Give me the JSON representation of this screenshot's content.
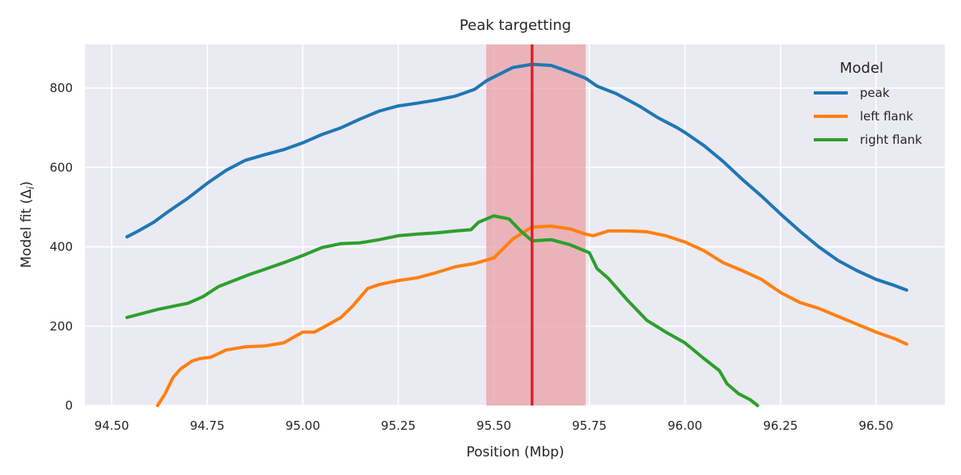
{
  "chart_data": {
    "type": "line",
    "title": "Peak targetting",
    "xlabel": "Position (Mbp)",
    "ylabel_main": "Model fit (Δ",
    "ylabel_sub": "i",
    "ylabel_end": ")",
    "xlim": [
      94.43,
      96.68
    ],
    "ylim": [
      0,
      910
    ],
    "xticks": [
      94.5,
      94.75,
      95.0,
      95.25,
      95.5,
      95.75,
      96.0,
      96.25,
      96.5
    ],
    "xtick_labels": [
      "94.50",
      "94.75",
      "95.00",
      "95.25",
      "95.50",
      "95.75",
      "96.00",
      "96.25",
      "96.50"
    ],
    "yticks": [
      0,
      200,
      400,
      600,
      800
    ],
    "ytick_labels": [
      "0",
      "200",
      "400",
      "600",
      "800"
    ],
    "grid": true,
    "legend": {
      "title": "Model",
      "placement": "upper right"
    },
    "highlight_band": {
      "x0": 95.48,
      "x1": 95.74,
      "color": "#e8a0a6"
    },
    "vline": {
      "x": 95.6,
      "color": "#d62728"
    },
    "series": [
      {
        "name": "peak",
        "color": "#1f77b4",
        "points": [
          [
            94.54,
            425
          ],
          [
            94.57,
            440
          ],
          [
            94.61,
            462
          ],
          [
            94.65,
            490
          ],
          [
            94.7,
            523
          ],
          [
            94.75,
            560
          ],
          [
            94.8,
            593
          ],
          [
            94.85,
            618
          ],
          [
            94.9,
            632
          ],
          [
            94.95,
            645
          ],
          [
            95.0,
            662
          ],
          [
            95.05,
            683
          ],
          [
            95.1,
            700
          ],
          [
            95.15,
            722
          ],
          [
            95.2,
            742
          ],
          [
            95.25,
            755
          ],
          [
            95.3,
            762
          ],
          [
            95.35,
            770
          ],
          [
            95.4,
            780
          ],
          [
            95.45,
            797
          ],
          [
            95.48,
            818
          ],
          [
            95.5,
            828
          ],
          [
            95.55,
            852
          ],
          [
            95.6,
            860
          ],
          [
            95.65,
            857
          ],
          [
            95.7,
            840
          ],
          [
            95.74,
            825
          ],
          [
            95.77,
            805
          ],
          [
            95.82,
            786
          ],
          [
            95.88,
            755
          ],
          [
            95.93,
            725
          ],
          [
            95.98,
            700
          ],
          [
            96.0,
            688
          ],
          [
            96.05,
            655
          ],
          [
            96.1,
            615
          ],
          [
            96.15,
            570
          ],
          [
            96.2,
            528
          ],
          [
            96.25,
            483
          ],
          [
            96.3,
            440
          ],
          [
            96.35,
            400
          ],
          [
            96.4,
            366
          ],
          [
            96.45,
            340
          ],
          [
            96.5,
            318
          ],
          [
            96.55,
            302
          ],
          [
            96.58,
            291
          ]
        ]
      },
      {
        "name": "left flank",
        "color": "#ff7f0e",
        "points": [
          [
            94.62,
            0
          ],
          [
            94.64,
            30
          ],
          [
            94.66,
            70
          ],
          [
            94.68,
            92
          ],
          [
            94.71,
            112
          ],
          [
            94.73,
            118
          ],
          [
            94.76,
            122
          ],
          [
            94.8,
            140
          ],
          [
            94.85,
            148
          ],
          [
            94.9,
            150
          ],
          [
            94.95,
            158
          ],
          [
            95.0,
            185
          ],
          [
            95.03,
            185
          ],
          [
            95.05,
            195
          ],
          [
            95.1,
            222
          ],
          [
            95.13,
            250
          ],
          [
            95.17,
            295
          ],
          [
            95.2,
            305
          ],
          [
            95.25,
            315
          ],
          [
            95.3,
            322
          ],
          [
            95.35,
            335
          ],
          [
            95.4,
            350
          ],
          [
            95.45,
            358
          ],
          [
            95.5,
            372
          ],
          [
            95.55,
            420
          ],
          [
            95.6,
            450
          ],
          [
            95.65,
            452
          ],
          [
            95.7,
            445
          ],
          [
            95.74,
            432
          ],
          [
            95.76,
            428
          ],
          [
            95.8,
            440
          ],
          [
            95.85,
            440
          ],
          [
            95.9,
            438
          ],
          [
            95.95,
            428
          ],
          [
            96.0,
            412
          ],
          [
            96.05,
            390
          ],
          [
            96.1,
            360
          ],
          [
            96.15,
            340
          ],
          [
            96.2,
            318
          ],
          [
            96.25,
            285
          ],
          [
            96.3,
            260
          ],
          [
            96.35,
            245
          ],
          [
            96.4,
            225
          ],
          [
            96.45,
            205
          ],
          [
            96.5,
            185
          ],
          [
            96.55,
            168
          ],
          [
            96.58,
            155
          ]
        ]
      },
      {
        "name": "right flank",
        "color": "#2ca02c",
        "points": [
          [
            94.54,
            222
          ],
          [
            94.58,
            232
          ],
          [
            94.62,
            242
          ],
          [
            94.66,
            250
          ],
          [
            94.7,
            258
          ],
          [
            94.74,
            275
          ],
          [
            94.78,
            300
          ],
          [
            94.82,
            315
          ],
          [
            94.86,
            330
          ],
          [
            94.9,
            343
          ],
          [
            94.95,
            360
          ],
          [
            95.0,
            378
          ],
          [
            95.05,
            398
          ],
          [
            95.1,
            408
          ],
          [
            95.15,
            410
          ],
          [
            95.2,
            418
          ],
          [
            95.25,
            428
          ],
          [
            95.3,
            432
          ],
          [
            95.35,
            435
          ],
          [
            95.4,
            440
          ],
          [
            95.44,
            443
          ],
          [
            95.46,
            462
          ],
          [
            95.5,
            478
          ],
          [
            95.54,
            470
          ],
          [
            95.57,
            440
          ],
          [
            95.6,
            415
          ],
          [
            95.65,
            418
          ],
          [
            95.7,
            405
          ],
          [
            95.75,
            385
          ],
          [
            95.77,
            345
          ],
          [
            95.8,
            320
          ],
          [
            95.85,
            265
          ],
          [
            95.9,
            215
          ],
          [
            95.95,
            185
          ],
          [
            96.0,
            158
          ],
          [
            96.05,
            118
          ],
          [
            96.09,
            88
          ],
          [
            96.11,
            55
          ],
          [
            96.14,
            30
          ],
          [
            96.17,
            15
          ],
          [
            96.19,
            0
          ]
        ]
      }
    ]
  }
}
